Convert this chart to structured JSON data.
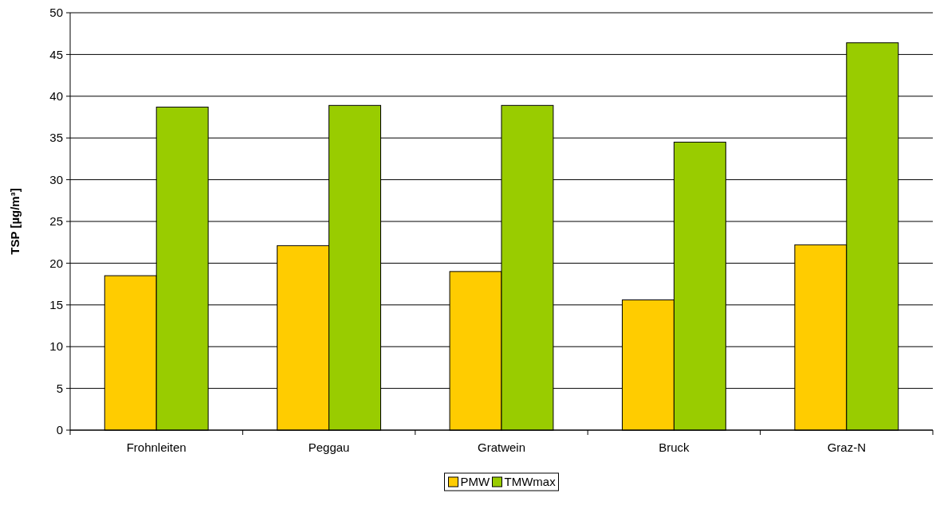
{
  "chart_data": {
    "type": "bar",
    "ylabel": "TSP  [µg/m³]",
    "categories": [
      "Frohnleiten",
      "Peggau",
      "Gratwein",
      "Bruck",
      "Graz-N"
    ],
    "series": [
      {
        "name": "PMW",
        "color": "#ffcc00",
        "values": [
          18.5,
          22.1,
          19.0,
          15.6,
          22.2
        ]
      },
      {
        "name": "TMWmax",
        "color": "#99cc00",
        "values": [
          38.7,
          38.9,
          38.9,
          34.5,
          46.4
        ]
      }
    ],
    "ylim": [
      0,
      50
    ],
    "yticks": [
      0,
      5,
      10,
      15,
      20,
      25,
      30,
      35,
      40,
      45,
      50
    ],
    "grid": "y",
    "legend": "bottom"
  }
}
